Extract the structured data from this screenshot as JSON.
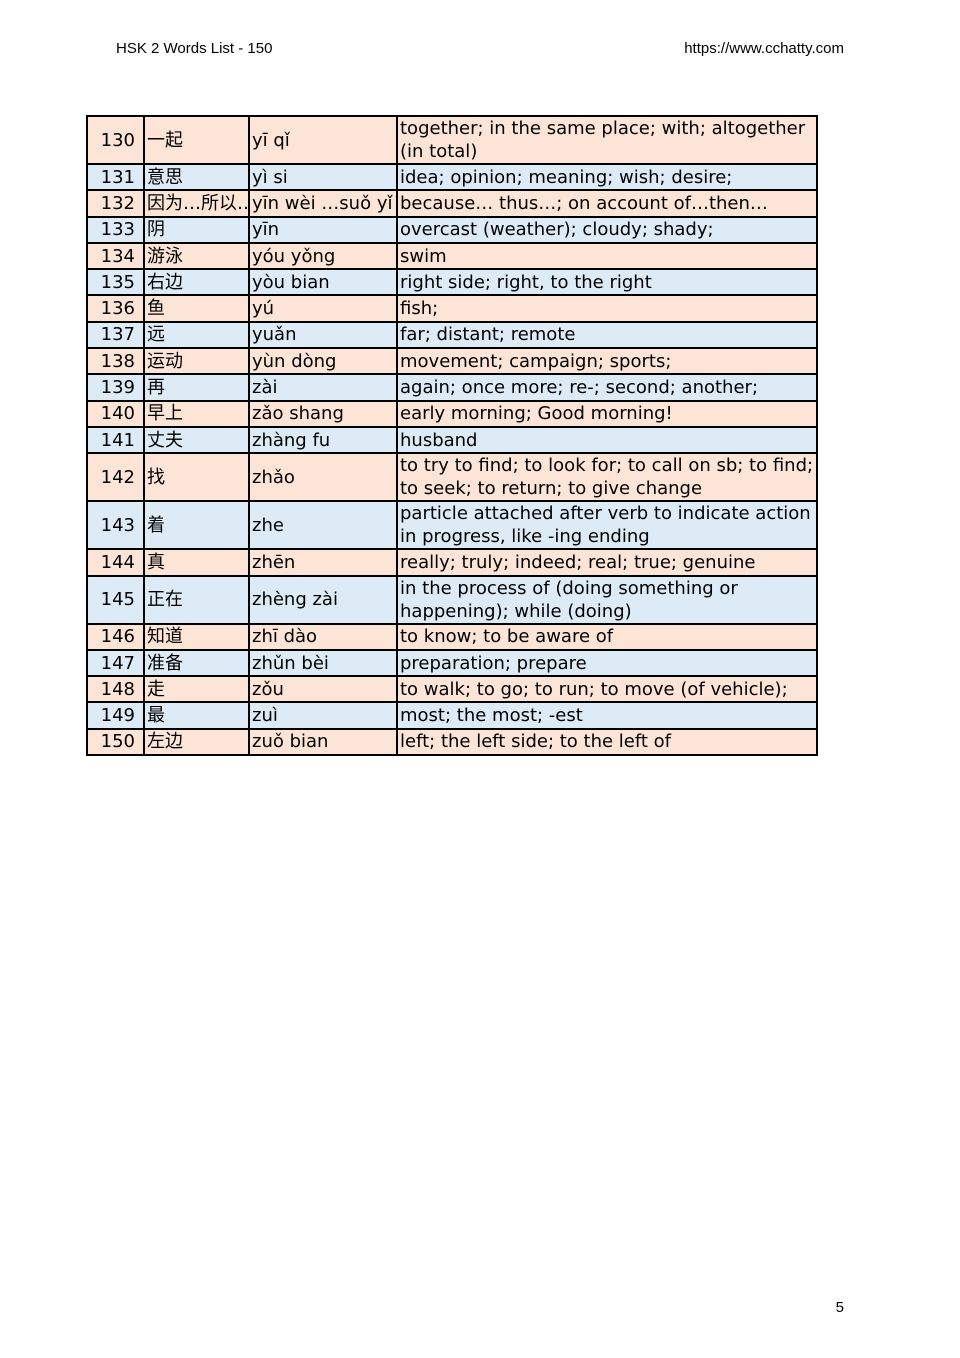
{
  "header": {
    "title": "HSK 2 Words List - 150",
    "url": "https://www.cchatty.com"
  },
  "page_number": "5",
  "colors": {
    "odd_row": "#fce4d6",
    "even_row": "#ddebf7"
  },
  "rows": [
    {
      "num": "130",
      "hanzi": "一起",
      "pinyin": "yī qǐ",
      "meaning": "together; in the same place; with; altogether (in total)",
      "double": true
    },
    {
      "num": "131",
      "hanzi": "意思",
      "pinyin": "yì si",
      "meaning": "idea; opinion; meaning; wish; desire;"
    },
    {
      "num": "132",
      "hanzi": "因为…所以…",
      "pinyin": "yīn wèi …suǒ yǐ",
      "meaning": "because… thus…; on account of…then…"
    },
    {
      "num": "133",
      "hanzi": "阴",
      "pinyin": "yīn",
      "meaning": "overcast (weather); cloudy; shady;"
    },
    {
      "num": "134",
      "hanzi": "游泳",
      "pinyin": "yóu yǒng",
      "meaning": "swim"
    },
    {
      "num": "135",
      "hanzi": "右边",
      "pinyin": "yòu bian",
      "meaning": "right side; right, to the right"
    },
    {
      "num": "136",
      "hanzi": "鱼",
      "pinyin": "yú",
      "meaning": "fish;"
    },
    {
      "num": "137",
      "hanzi": "远",
      "pinyin": "yuǎn",
      "meaning": "far; distant; remote"
    },
    {
      "num": "138",
      "hanzi": "运动",
      "pinyin": "yùn dòng",
      "meaning": "movement; campaign; sports;"
    },
    {
      "num": "139",
      "hanzi": "再",
      "pinyin": "zài",
      "meaning": "again; once more; re-; second; another;"
    },
    {
      "num": "140",
      "hanzi": "早上",
      "pinyin": "zǎo shang",
      "meaning": "early morning; Good morning!"
    },
    {
      "num": "141",
      "hanzi": "丈夫",
      "pinyin": "zhàng fu",
      "meaning": "husband"
    },
    {
      "num": "142",
      "hanzi": "找",
      "pinyin": "zhǎo",
      "meaning": "to try to find; to look for; to call on sb; to find; to seek; to return; to give change",
      "double": true
    },
    {
      "num": "143",
      "hanzi": "着",
      "pinyin": "zhe",
      "meaning": "particle attached after verb to indicate action in progress, like -ing ending",
      "double": true
    },
    {
      "num": "144",
      "hanzi": "真",
      "pinyin": "zhēn",
      "meaning": "really; truly; indeed; real; true; genuine"
    },
    {
      "num": "145",
      "hanzi": "正在",
      "pinyin": "zhèng zài",
      "meaning": "in the process of (doing something or happening); while (doing)",
      "double": true
    },
    {
      "num": "146",
      "hanzi": "知道",
      "pinyin": "zhī dào",
      "meaning": "to know; to be aware of"
    },
    {
      "num": "147",
      "hanzi": "准备",
      "pinyin": "zhǔn bèi",
      "meaning": "preparation; prepare"
    },
    {
      "num": "148",
      "hanzi": "走",
      "pinyin": "zǒu",
      "meaning": "to walk; to go; to run; to move (of vehicle);"
    },
    {
      "num": "149",
      "hanzi": "最",
      "pinyin": "zuì",
      "meaning": "most; the most; -est"
    },
    {
      "num": "150",
      "hanzi": "左边",
      "pinyin": "zuǒ bian",
      "meaning": "left; the left side; to the left of"
    }
  ]
}
